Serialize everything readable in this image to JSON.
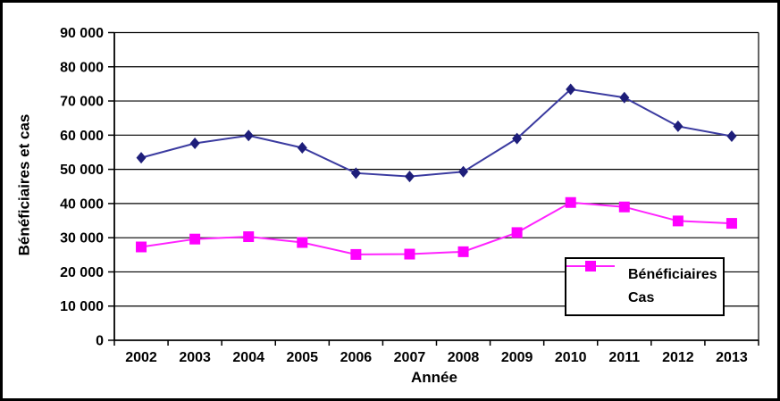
{
  "chart_data": {
    "type": "line",
    "categories": [
      "2002",
      "2003",
      "2004",
      "2005",
      "2006",
      "2007",
      "2008",
      "2009",
      "2010",
      "2011",
      "2012",
      "2013"
    ],
    "series": [
      {
        "name": "Bénéficiaires",
        "marker": "diamond",
        "line_color": "#3B3BA0",
        "marker_color": "#1E1E7A",
        "values": [
          53400,
          57600,
          59900,
          56300,
          48900,
          47900,
          49300,
          59000,
          73400,
          71000,
          62600,
          59700
        ]
      },
      {
        "name": "Cas",
        "marker": "square",
        "line_color": "#FF22FF",
        "marker_color": "#FF00FF",
        "values": [
          27300,
          29600,
          30300,
          28600,
          25100,
          25200,
          25900,
          31500,
          40300,
          39000,
          34900,
          34200
        ]
      }
    ],
    "title": "",
    "xlabel": "Année",
    "ylabel": "Bénéficiaires et cas",
    "ylim": [
      0,
      90000
    ],
    "ytick_values": [
      0,
      10000,
      20000,
      30000,
      40000,
      50000,
      60000,
      70000,
      80000,
      90000
    ],
    "ytick_labels": [
      "0",
      "10 000",
      "20 000",
      "30 000",
      "40 000",
      "50 000",
      "60 000",
      "70 000",
      "80 000",
      "90 000"
    ],
    "grid": true,
    "legend_position": "inside-lower-right",
    "colors": {
      "axis": "#000000",
      "gridline": "#000000",
      "text": "#000000",
      "plot_background": "#FFFFFF",
      "outer_border": "#000000"
    }
  }
}
